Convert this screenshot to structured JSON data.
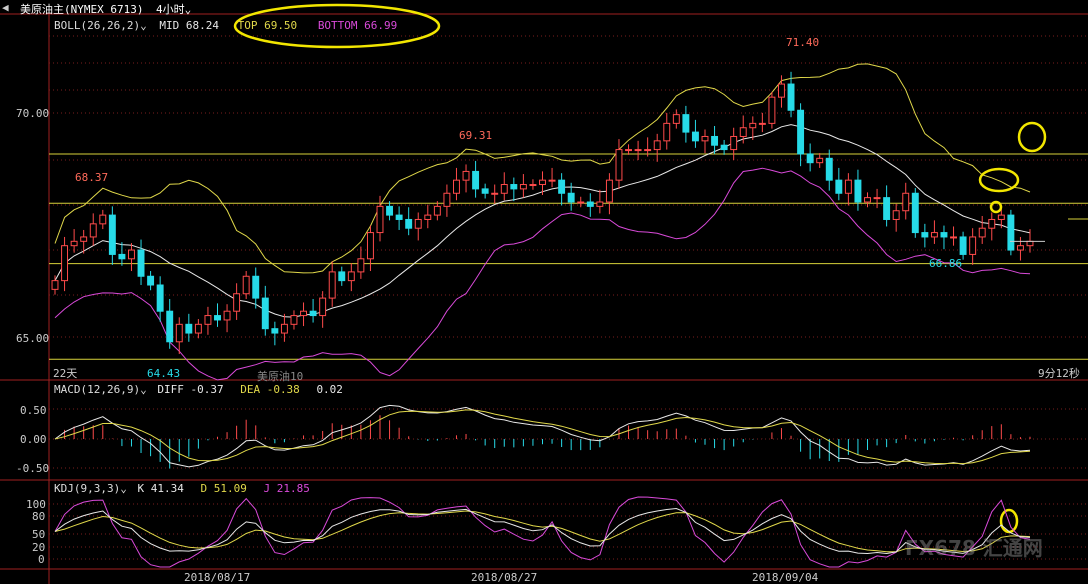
{
  "toolbar": {
    "back_label": "◀",
    "symbol": "美原油主(NYMEX 6713)",
    "period": "4小时",
    "period_caret": "⌄"
  },
  "price_panel": {
    "indicator": "BOLL(26,26,2)",
    "mid_label": "MID 68.24",
    "top_label": "TOP 69.50",
    "bottom_label": "BOTTOM 66.99",
    "y_ticks": [
      "70.00",
      "65.00"
    ],
    "annotations": {
      "high_label": "71.40",
      "mid_high_label": "69.31",
      "left_high_label": "68.37",
      "low_label": "64.43",
      "right_low_label": "66.86"
    },
    "bottom_left": "22天",
    "watermark_name": "美原油10",
    "countdown": "9分12秒"
  },
  "macd_panel": {
    "indicator": "MACD(12,26,9)",
    "diff_label": "DIFF -0.37",
    "dea_label": "DEA -0.38",
    "hist_value": "0.02",
    "y_ticks": [
      "0.50",
      "0.00",
      "-0.50"
    ]
  },
  "kdj_panel": {
    "indicator": "KDJ(9,3,3)",
    "k_label": "K 41.34",
    "d_label": "D 51.09",
    "j_label": "J 21.85",
    "y_ticks": [
      "100",
      "80",
      "50",
      "20",
      "0"
    ]
  },
  "x_axis": {
    "dates": [
      "2018/08/17",
      "2018/08/27",
      "2018/09/04"
    ]
  },
  "watermark": "FX678 汇通网",
  "colors": {
    "up": "#ff4b4b",
    "down": "#27dbe8",
    "boll_mid": "#e8e8e8",
    "boll_top": "#e0d84a",
    "boll_bottom": "#d94ad9",
    "hline": "#d8d23a",
    "grid": "#7a1e1e",
    "highlight": "#f2e600",
    "macd_diff": "#e8e8e8",
    "macd_dea": "#e0d84a",
    "kdj_k": "#e8e8e8",
    "kdj_d": "#e0d84a",
    "kdj_j": "#d94ad9"
  },
  "chart_data": {
    "type": "candlestick",
    "price_range": [
      64.6,
      72.2
    ],
    "hlines": [
      69.5,
      68.37,
      66.99,
      64.8
    ],
    "closes": [
      66.6,
      67.4,
      67.5,
      67.6,
      67.9,
      68.1,
      67.2,
      67.1,
      67.3,
      66.7,
      66.5,
      65.9,
      65.2,
      65.6,
      65.4,
      65.6,
      65.8,
      65.7,
      65.9,
      66.3,
      66.7,
      66.2,
      65.5,
      65.4,
      65.6,
      65.8,
      65.9,
      65.8,
      66.2,
      66.8,
      66.6,
      66.8,
      67.1,
      67.7,
      68.3,
      68.1,
      68.0,
      67.8,
      68.0,
      68.1,
      68.3,
      68.6,
      68.9,
      69.1,
      68.7,
      68.6,
      68.6,
      68.8,
      68.7,
      68.8,
      68.8,
      68.9,
      68.9,
      68.6,
      68.4,
      68.4,
      68.3,
      68.4,
      68.9,
      69.6,
      69.6,
      69.6,
      69.6,
      69.8,
      70.2,
      70.4,
      70.0,
      69.8,
      69.9,
      69.7,
      69.6,
      69.9,
      70.1,
      70.2,
      70.2,
      70.8,
      71.1,
      70.5,
      69.5,
      69.3,
      69.4,
      68.9,
      68.6,
      68.9,
      68.4,
      68.5,
      68.5,
      68.0,
      68.2,
      68.6,
      67.7,
      67.6,
      67.7,
      67.6,
      67.6,
      67.2,
      67.6,
      67.8,
      68.0,
      68.1,
      67.3,
      67.4,
      67.5
    ],
    "kdj_k_last": 41.34,
    "kdj_d_last": 51.09,
    "kdj_j_last": 21.85
  }
}
